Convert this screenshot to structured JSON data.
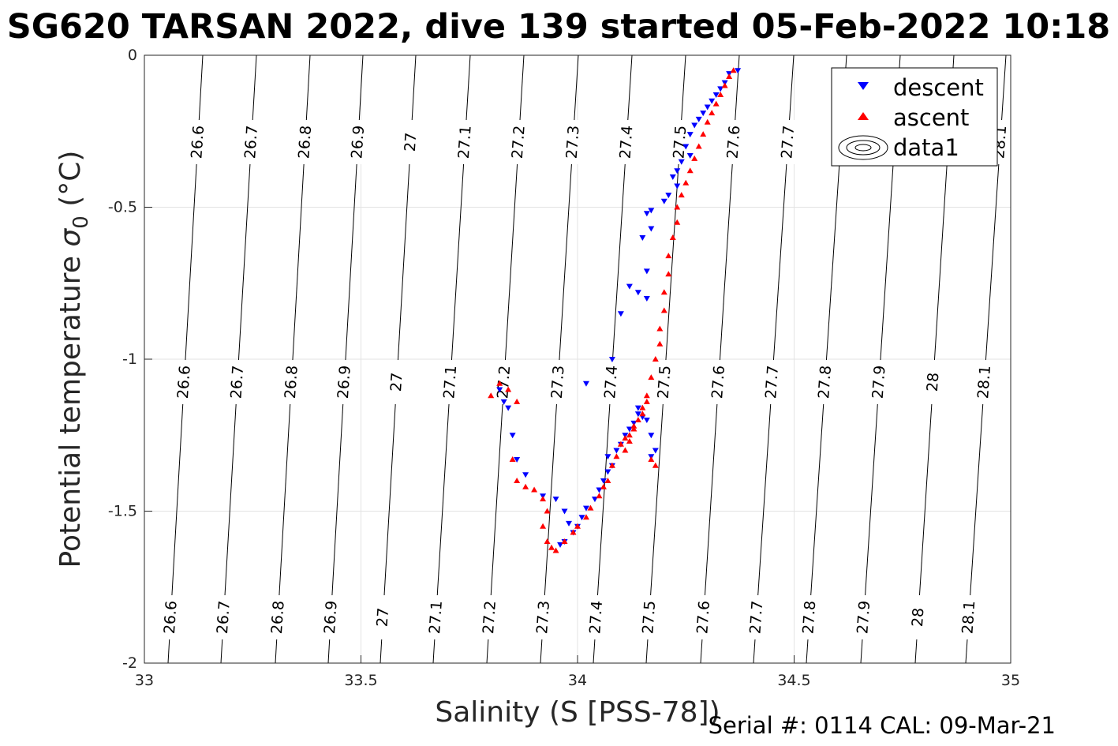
{
  "chart_data": {
    "type": "scatter",
    "title": "SG620 TARSAN 2022, dive 139 started 05-Feb-2022 10:18",
    "xlabel": "Salinity (S [PSS-78])",
    "ylabel_main": "Potential temperature ",
    "ylabel_sigma": "σ",
    "ylabel_sub": "0",
    "ylabel_units": " (°C)",
    "xlim": [
      33,
      35
    ],
    "ylim": [
      -2,
      0
    ],
    "xticks": [
      "33",
      "33.5",
      "34",
      "34.5",
      "35"
    ],
    "yticks": [
      "0",
      "-0.5",
      "-1",
      "-1.5",
      "-2"
    ],
    "grid": true,
    "legend_position": "top-right",
    "legend": [
      {
        "label": "descent",
        "marker": "triangle-down",
        "color": "#0000ff"
      },
      {
        "label": "ascent",
        "marker": "triangle-up",
        "color": "#ff0000"
      },
      {
        "label": "data1",
        "marker": "contour-ellipse",
        "color": "#000000"
      }
    ],
    "isopycnal_labels": [
      "26.6",
      "26.7",
      "26.8",
      "26.9",
      "27",
      "27.1",
      "27.2",
      "27.3",
      "27.4",
      "27.5",
      "27.6",
      "27.7",
      "27.8",
      "27.9",
      "28",
      "28.1"
    ],
    "series": [
      {
        "name": "descent",
        "color": "#0000ff",
        "marker": "triangle-down",
        "points": [
          [
            34.37,
            -0.05
          ],
          [
            34.35,
            -0.06
          ],
          [
            34.34,
            -0.09
          ],
          [
            34.33,
            -0.11
          ],
          [
            34.32,
            -0.13
          ],
          [
            34.31,
            -0.15
          ],
          [
            34.3,
            -0.17
          ],
          [
            34.29,
            -0.19
          ],
          [
            34.28,
            -0.21
          ],
          [
            34.27,
            -0.23
          ],
          [
            34.26,
            -0.26
          ],
          [
            34.25,
            -0.3
          ],
          [
            34.26,
            -0.33
          ],
          [
            34.24,
            -0.35
          ],
          [
            34.23,
            -0.38
          ],
          [
            34.22,
            -0.4
          ],
          [
            34.23,
            -0.43
          ],
          [
            34.21,
            -0.46
          ],
          [
            34.2,
            -0.48
          ],
          [
            34.17,
            -0.51
          ],
          [
            34.16,
            -0.52
          ],
          [
            34.17,
            -0.57
          ],
          [
            34.15,
            -0.6
          ],
          [
            34.16,
            -0.71
          ],
          [
            34.12,
            -0.76
          ],
          [
            34.14,
            -0.78
          ],
          [
            34.16,
            -0.8
          ],
          [
            34.1,
            -0.85
          ],
          [
            34.08,
            -1.0
          ],
          [
            34.02,
            -1.08
          ],
          [
            33.82,
            -1.1
          ],
          [
            33.83,
            -1.14
          ],
          [
            33.84,
            -1.16
          ],
          [
            33.85,
            -1.25
          ],
          [
            33.86,
            -1.33
          ],
          [
            33.88,
            -1.38
          ],
          [
            33.92,
            -1.45
          ],
          [
            33.95,
            -1.46
          ],
          [
            33.97,
            -1.5
          ],
          [
            33.98,
            -1.54
          ],
          [
            33.99,
            -1.57
          ],
          [
            33.97,
            -1.6
          ],
          [
            33.96,
            -1.61
          ],
          [
            34.0,
            -1.55
          ],
          [
            34.01,
            -1.52
          ],
          [
            34.02,
            -1.49
          ],
          [
            34.04,
            -1.46
          ],
          [
            34.05,
            -1.43
          ],
          [
            34.06,
            -1.4
          ],
          [
            34.07,
            -1.37
          ],
          [
            34.08,
            -1.35
          ],
          [
            34.07,
            -1.32
          ],
          [
            34.09,
            -1.3
          ],
          [
            34.1,
            -1.28
          ],
          [
            34.11,
            -1.25
          ],
          [
            34.12,
            -1.23
          ],
          [
            34.13,
            -1.21
          ],
          [
            34.14,
            -1.18
          ],
          [
            34.15,
            -1.19
          ],
          [
            34.14,
            -1.16
          ],
          [
            34.16,
            -1.2
          ],
          [
            34.17,
            -1.25
          ],
          [
            34.18,
            -1.3
          ],
          [
            34.17,
            -1.32
          ]
        ]
      },
      {
        "name": "ascent",
        "color": "#ff0000",
        "marker": "triangle-up",
        "points": [
          [
            34.36,
            -0.05
          ],
          [
            34.35,
            -0.07
          ],
          [
            34.34,
            -0.1
          ],
          [
            34.33,
            -0.13
          ],
          [
            34.32,
            -0.16
          ],
          [
            34.31,
            -0.19
          ],
          [
            34.3,
            -0.22
          ],
          [
            34.29,
            -0.26
          ],
          [
            34.28,
            -0.3
          ],
          [
            34.27,
            -0.34
          ],
          [
            34.26,
            -0.38
          ],
          [
            34.25,
            -0.42
          ],
          [
            34.24,
            -0.46
          ],
          [
            34.23,
            -0.5
          ],
          [
            34.23,
            -0.55
          ],
          [
            34.22,
            -0.6
          ],
          [
            34.21,
            -0.66
          ],
          [
            34.21,
            -0.72
          ],
          [
            34.2,
            -0.78
          ],
          [
            34.2,
            -0.84
          ],
          [
            34.19,
            -0.9
          ],
          [
            34.19,
            -0.95
          ],
          [
            34.18,
            -1.0
          ],
          [
            34.17,
            -1.06
          ],
          [
            34.16,
            -1.12
          ],
          [
            34.15,
            -1.16
          ],
          [
            34.14,
            -1.2
          ],
          [
            34.13,
            -1.23
          ],
          [
            34.12,
            -1.27
          ],
          [
            34.11,
            -1.3
          ],
          [
            34.12,
            -1.25
          ],
          [
            34.18,
            -1.35
          ],
          [
            34.17,
            -1.33
          ],
          [
            33.8,
            -1.12
          ],
          [
            33.82,
            -1.08
          ],
          [
            33.84,
            -1.1
          ],
          [
            33.86,
            -1.14
          ],
          [
            33.85,
            -1.33
          ],
          [
            33.86,
            -1.4
          ],
          [
            33.88,
            -1.42
          ],
          [
            33.9,
            -1.43
          ],
          [
            33.92,
            -1.46
          ],
          [
            33.93,
            -1.5
          ],
          [
            33.92,
            -1.55
          ],
          [
            33.93,
            -1.6
          ],
          [
            33.94,
            -1.62
          ],
          [
            33.95,
            -1.63
          ],
          [
            33.97,
            -1.6
          ],
          [
            33.99,
            -1.57
          ],
          [
            34.0,
            -1.55
          ],
          [
            34.02,
            -1.52
          ],
          [
            34.03,
            -1.49
          ],
          [
            34.05,
            -1.45
          ],
          [
            34.06,
            -1.42
          ],
          [
            34.07,
            -1.4
          ],
          [
            34.08,
            -1.35
          ],
          [
            34.09,
            -1.32
          ],
          [
            34.1,
            -1.28
          ],
          [
            34.11,
            -1.26
          ],
          [
            34.13,
            -1.22
          ],
          [
            34.15,
            -1.18
          ],
          [
            34.16,
            -1.14
          ]
        ]
      }
    ]
  },
  "footer": {
    "serial": "Serial #: 0114  CAL: 09-Mar-21"
  }
}
